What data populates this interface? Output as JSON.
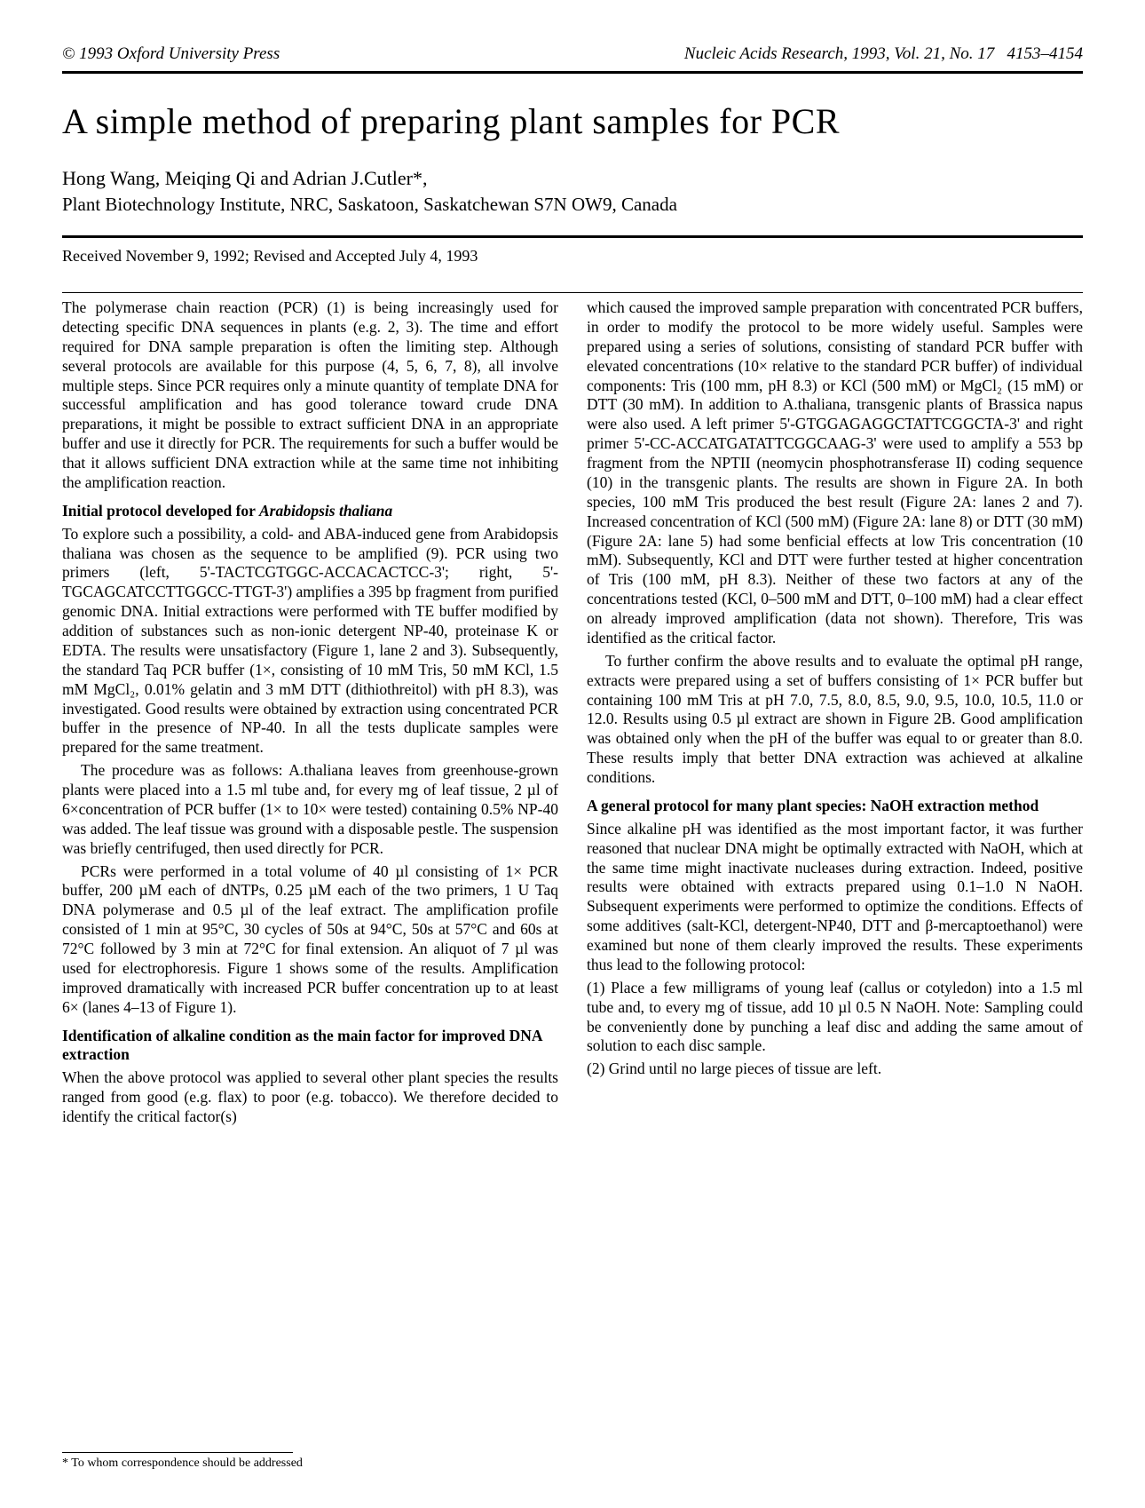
{
  "header": {
    "left": "© 1993 Oxford University Press",
    "right_journal": "Nucleic Acids Research, 1993, Vol. 21, No. 17",
    "right_pages": "4153–4154"
  },
  "title": "A simple method of preparing plant samples for PCR",
  "authors": "Hong Wang, Meiqing Qi and Adrian J.Cutler*,",
  "affiliation": "Plant Biotechnology Institute, NRC, Saskatoon, Saskatchewan S7N OW9, Canada",
  "dates": "Received November 9, 1992; Revised and Accepted July 4, 1993",
  "left_column": {
    "p1": "The polymerase chain reaction (PCR) (1) is being increasingly used for detecting specific DNA sequences in plants (e.g. 2, 3). The time and effort required for DNA sample preparation is often the limiting step. Although several protocols are available for this purpose (4, 5, 6, 7, 8), all involve multiple steps. Since PCR requires only a minute quantity of template DNA for successful amplification and has good tolerance toward crude DNA preparations, it might be possible to extract sufficient DNA in an appropriate buffer and use it directly for PCR. The requirements for such a buffer would be that it allows sufficient DNA extraction while at the same time not inhibiting the amplification reaction.",
    "h1": "Initial protocol developed for Arabidopsis thaliana",
    "p2": "To explore such a possibility, a cold- and ABA-induced gene from Arabidopsis thaliana was chosen as the sequence to be amplified (9). PCR using two primers (left, 5'-TACTCGTGGC-ACCACACTCC-3'; right, 5'-TGCAGCATCCTTGGCC-TTGT-3') amplifies a 395 bp fragment from purified genomic DNA. Initial extractions were performed with TE buffer modified by addition of substances such as non-ionic detergent NP-40, proteinase K or EDTA. The results were unsatisfactory (Figure 1, lane 2 and 3). Subsequently, the standard Taq PCR buffer (1×, consisting of 10 mM Tris, 50 mM KCl, 1.5 mM MgCl₂, 0.01% gelatin and 3 mM DTT (dithiothreitol) with pH 8.3), was investigated. Good results were obtained by extraction using concentrated PCR buffer in the presence of NP-40. In all the tests duplicate samples were prepared for the same treatment.",
    "p3": "The procedure was as follows: A.thaliana leaves from greenhouse-grown plants were placed into a 1.5 ml tube and, for every mg of leaf tissue, 2 µl of 6×concentration of PCR buffer (1× to 10× were tested) containing 0.5% NP-40 was added. The leaf tissue was ground with a disposable pestle. The suspension was briefly centrifuged, then used directly for PCR.",
    "p4": "PCRs were performed in a total volume of 40 µl consisting of 1× PCR buffer, 200 µM each of dNTPs, 0.25 µM each of the two primers, 1 U Taq DNA polymerase and 0.5 µl of the leaf extract. The amplification profile consisted of 1 min at 95°C, 30 cycles of 50s at 94°C, 50s at 57°C and 60s at 72°C followed by 3 min at 72°C for final extension. An aliquot of 7 µl was used for electrophoresis. Figure 1 shows some of the results. Amplification improved dramatically with increased PCR buffer concentration up to at least 6× (lanes 4–13 of Figure 1).",
    "h2": "Identification of alkaline condition as the main factor for improved DNA extraction",
    "p5": "When the above protocol was applied to several other plant species the results ranged from good (e.g. flax) to poor (e.g. tobacco). We therefore decided to identify the critical factor(s)"
  },
  "right_column": {
    "p1": "which caused the improved sample preparation with concentrated PCR buffers, in order to modify the protocol to be more widely useful. Samples were prepared using a series of solutions, consisting of standard PCR buffer with elevated concentrations (10× relative to the standard PCR buffer) of individual components: Tris (100 mm, pH 8.3) or KCl (500 mM) or MgCl₂ (15 mM) or DTT (30 mM). In addition to A.thaliana, transgenic plants of Brassica napus were also used. A left primer 5'-GTGGAGAGGCTATTCGGCTA-3' and right primer 5'-CC-ACCATGATATTCGGCAAG-3' were used to amplify a 553 bp fragment from the NPTII (neomycin phosphotransferase II) coding sequence (10) in the transgenic plants. The results are shown in Figure 2A. In both species, 100 mM Tris produced the best result (Figure 2A: lanes 2 and 7). Increased concentration of KCl (500 mM) (Figure 2A: lane 8) or DTT (30 mM) (Figure 2A: lane 5) had some benficial effects at low Tris concentration (10 mM). Subsequently, KCl and DTT were further tested at higher concentration of Tris (100 mM, pH 8.3). Neither of these two factors at any of the concentrations tested (KCl, 0–500 mM and DTT, 0–100 mM) had a clear effect on already improved amplification (data not shown). Therefore, Tris was identified as the critical factor.",
    "p2": "To further confirm the above results and to evaluate the optimal pH range, extracts were prepared using a set of buffers consisting of 1× PCR buffer but containing 100 mM Tris at pH 7.0, 7.5, 8.0, 8.5, 9.0, 9.5, 10.0, 10.5, 11.0 or 12.0. Results using 0.5 µl extract are shown in Figure 2B. Good amplification was obtained only when the pH of the buffer was equal to or greater than 8.0. These results imply that better DNA extraction was achieved at alkaline conditions.",
    "h1": "A general protocol for many plant species: NaOH extraction method",
    "p3": "Since alkaline pH was identified as the most important factor, it was further reasoned that nuclear DNA might be optimally extracted with NaOH, which at the same time might inactivate nucleases during extraction. Indeed, positive results were obtained with extracts prepared using 0.1–1.0 N NaOH. Subsequent experiments were performed to optimize the conditions. Effects of some additives (salt-KCl, detergent-NP40, DTT and β-mercaptoethanol) were examined but none of them clearly improved the results. These experiments thus lead to the following protocol:",
    "p4": "(1) Place a few milligrams of young leaf (callus or cotyledon) into a 1.5 ml tube and, to every mg of tissue, add 10 µl 0.5 N NaOH. Note: Sampling could be conveniently done by punching a leaf disc and adding the same amout of solution to each disc sample.",
    "p5": "(2) Grind until no large pieces of tissue are left."
  },
  "footnote": "* To whom correspondence should be addressed"
}
